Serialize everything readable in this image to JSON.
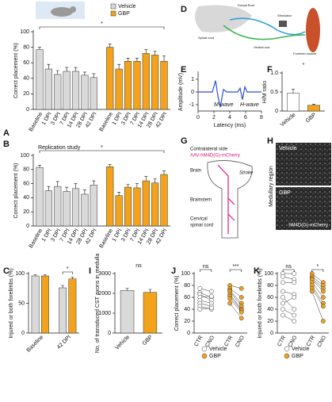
{
  "chart_data": [
    {
      "panel": "A",
      "type": "bar",
      "ylabel": "Correct placement (%)",
      "annotation": "*",
      "categories": [
        "Baseline",
        "1 DPI",
        "3 DPI",
        "7 DPI",
        "14 DPI",
        "28 DPI",
        "42 DPI"
      ],
      "series": [
        {
          "name": "Vehicle",
          "color": "#d9d9d9",
          "values": [
            77,
            52,
            45,
            49,
            49,
            44,
            41
          ],
          "errors": [
            3,
            6,
            5,
            5,
            5,
            4,
            5
          ]
        },
        {
          "name": "GBP",
          "color": "#f2a31b",
          "values": [
            80,
            52,
            62,
            62,
            72,
            70,
            62
          ],
          "errors": [
            4,
            6,
            4,
            4,
            5,
            5,
            7
          ]
        }
      ],
      "ylim": [
        0,
        100
      ],
      "yticks": [
        0,
        20,
        40,
        60,
        80,
        100
      ]
    },
    {
      "panel": "B",
      "type": "bar",
      "ylabel": "Correct placement (%)",
      "annotation": "*",
      "subtitle": "Replication study",
      "categories": [
        "Baseline",
        "1 DPI",
        "3 DPI",
        "7 DPI",
        "14 DPI",
        "28 DPI",
        "42 DPI"
      ],
      "series": [
        {
          "color": "#d9d9d9",
          "values": [
            83,
            50,
            56,
            49,
            53,
            45,
            58
          ],
          "errors": [
            3,
            6,
            7,
            6,
            7,
            6,
            6
          ]
        },
        {
          "color": "#f2a31b",
          "values": [
            84,
            43,
            55,
            54,
            64,
            61,
            73
          ],
          "errors": [
            3,
            5,
            4,
            6,
            6,
            6,
            5
          ]
        }
      ],
      "ylim": [
        0,
        100
      ],
      "yticks": [
        0,
        20,
        40,
        60,
        80,
        100
      ]
    },
    {
      "panel": "C",
      "type": "bar",
      "ylabel": "Injured or both forelimbs (%)",
      "annotation": "*",
      "categories": [
        "Baseline",
        "42 DPI"
      ],
      "series": [
        {
          "color": "#d9d9d9",
          "values": [
            96,
            76
          ],
          "errors": [
            2,
            4
          ]
        },
        {
          "color": "#f2a31b",
          "values": [
            96,
            91
          ],
          "errors": [
            2,
            3
          ]
        }
      ],
      "ylim": [
        0,
        100
      ],
      "yticks": [
        0,
        50,
        100
      ]
    },
    {
      "panel": "E",
      "type": "line",
      "xlabel": "Latency (ms)",
      "ylabel": "Amplitude (mV)",
      "color": "#2b4fd6",
      "x": [
        0,
        1,
        1.8,
        2.2,
        2.5,
        2.8,
        3.2,
        3.6,
        4,
        4.5,
        5,
        5.3,
        5.6,
        5.9,
        6.2,
        6.6,
        7,
        8
      ],
      "values": [
        0,
        0,
        0,
        0.9,
        -0.3,
        -1.2,
        0.2,
        0,
        0,
        0,
        0,
        0.3,
        -0.6,
        0.4,
        0,
        0,
        0,
        0
      ],
      "xlim": [
        0,
        8
      ],
      "xticks": [
        0,
        2,
        4,
        6,
        8
      ],
      "ylim": [
        -1.5,
        1.5
      ],
      "yticks": [
        -1,
        0,
        1
      ],
      "labels": [
        "M-wave",
        "H-wave"
      ]
    },
    {
      "panel": "F",
      "type": "bar",
      "ylabel": "H/M ratio",
      "annotation": "*",
      "categories": [
        "Vehicle",
        "GBP"
      ],
      "values": [
        0.47,
        0.15
      ],
      "errors": [
        0.1,
        0.03
      ],
      "colors": [
        "#ffffff",
        "#f2a31b"
      ],
      "ylim": [
        0,
        1
      ],
      "yticks": [
        0,
        0.5,
        {
          "value": 1,
          "label": "1.0"
        }
      ]
    },
    {
      "panel": "I",
      "type": "bar",
      "ylabel": "No. of transduced CST axons in medulla",
      "annotation": "ns",
      "categories": [
        "Vehicle",
        "GBP"
      ],
      "values": [
        2150,
        2050
      ],
      "errors": [
        100,
        150
      ],
      "colors": [
        "#d9d9d9",
        "#f2a31b"
      ],
      "ylim": [
        0,
        3000
      ],
      "yticks": [
        0,
        1000,
        2000,
        3000
      ]
    },
    {
      "panel": "J",
      "type": "paired",
      "ylabel": "Correct placement (%)",
      "annotations": [
        "ns",
        "***"
      ],
      "categories": [
        "CTR",
        "CNO",
        "CTR",
        "CNO"
      ],
      "series": [
        {
          "name": "Vehicle",
          "color": "#ffffff",
          "values": [
            [
              75,
              70
            ],
            [
              68,
              60
            ],
            [
              65,
              55
            ],
            [
              60,
              62
            ],
            [
              55,
              50
            ],
            [
              50,
              45
            ],
            [
              45,
              40
            ],
            [
              40,
              42
            ]
          ]
        },
        {
          "name": "GBP",
          "color": "#f2a31b",
          "values": [
            [
              80,
              75
            ],
            [
              75,
              60
            ],
            [
              72,
              50
            ],
            [
              70,
              45
            ],
            [
              65,
              40
            ],
            [
              62,
              38
            ],
            [
              58,
              35
            ],
            [
              50,
              25
            ]
          ]
        }
      ],
      "ylim": [
        0,
        100
      ],
      "yticks": [
        0,
        20,
        40,
        60,
        80,
        100
      ]
    },
    {
      "panel": "K",
      "type": "paired",
      "ylabel": "Injured or both forelimbs (%)",
      "annotations": [
        "ns",
        "*"
      ],
      "categories": [
        "CTR",
        "CNO",
        "CTR",
        "CNO"
      ],
      "series": [
        {
          "name": "Vehicle",
          "color": "#ffffff",
          "values": [
            [
              100,
              100
            ],
            [
              95,
              90
            ],
            [
              85,
              85
            ],
            [
              70,
              65
            ],
            [
              60,
              40
            ],
            [
              50,
              60
            ],
            [
              40,
              30
            ],
            [
              30,
              20
            ]
          ]
        },
        {
          "name": "GBP",
          "color": "#f2a31b",
          "values": [
            [
              100,
              85
            ],
            [
              95,
              80
            ],
            [
              92,
              75
            ],
            [
              90,
              70
            ],
            [
              85,
              60
            ],
            [
              80,
              50
            ],
            [
              75,
              45
            ],
            [
              70,
              20
            ]
          ]
        }
      ],
      "ylim": [
        0,
        100
      ],
      "yticks": [
        0,
        20,
        40,
        60,
        80,
        100
      ]
    }
  ],
  "diagrams": {
    "D": {
      "panel": "D",
      "labels": [
        "Dorsal Root",
        "Stimulator",
        "Ventral root",
        "Spinal cord",
        "Forelimb muscle"
      ]
    },
    "G": {
      "panel": "G",
      "labels": [
        "Contralateral side",
        "AAV-hM4D(G)-mCherry",
        "Brain",
        "Stroke",
        "Brainstem",
        "Cervical",
        "spinal cord"
      ]
    },
    "H": {
      "panel": "H",
      "labels": [
        "Vehicle",
        "GBP",
        "Medullary region",
        "hM4D(G)-mCherry"
      ]
    }
  }
}
